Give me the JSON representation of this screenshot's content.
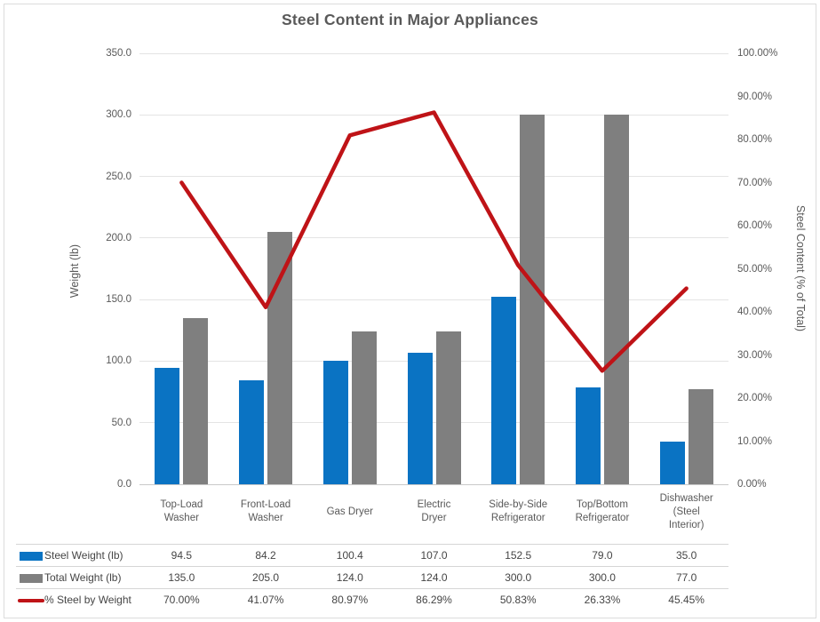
{
  "chart": {
    "title": "Steel Content in Major Appliances",
    "left_axis_title": "Weight (lb)",
    "right_axis_title": "Steel Content (% of Total)"
  },
  "chart_data": {
    "type": "combo-bar-line",
    "title": "Steel Content in Major Appliances",
    "categories": [
      "Top-Load Washer",
      "Front-Load Washer",
      "Gas Dryer",
      "Electric Dryer",
      "Side-by-Side Refrigerator",
      "Top/Bottom Refrigerator",
      "Dishwasher (Steel Interior)"
    ],
    "category_labels_wrapped": [
      "Top-Load\nWasher",
      "Front-Load\nWasher",
      "Gas Dryer",
      "Electric\nDryer",
      "Side-by-Side\nRefrigerator",
      "Top/Bottom\nRefrigerator",
      "Dishwasher\n(Steel\nInterior)"
    ],
    "series": [
      {
        "name": "Steel Weight (lb)",
        "type": "bar",
        "axis": "left",
        "color": "#0a73c3",
        "values": [
          94.5,
          84.2,
          100.4,
          107.0,
          152.5,
          79.0,
          35.0
        ],
        "display_values": [
          "94.5",
          "84.2",
          "100.4",
          "107.0",
          "152.5",
          "79.0",
          "35.0"
        ]
      },
      {
        "name": "Total Weight (lb)",
        "type": "bar",
        "axis": "left",
        "color": "#7f7f7f",
        "values": [
          135.0,
          205.0,
          124.0,
          124.0,
          300.0,
          300.0,
          77.0
        ],
        "display_values": [
          "135.0",
          "205.0",
          "124.0",
          "124.0",
          "300.0",
          "300.0",
          "77.0"
        ]
      },
      {
        "name": "% Steel by Weight",
        "type": "line",
        "axis": "right",
        "color": "#bf1317",
        "values": [
          70.0,
          41.07,
          80.97,
          86.29,
          50.83,
          26.33,
          45.45
        ],
        "display_values": [
          "70.00%",
          "41.07%",
          "80.97%",
          "86.29%",
          "50.83%",
          "26.33%",
          "45.45%"
        ]
      }
    ],
    "left_axis": {
      "title": "Weight (lb)",
      "min": 0,
      "max": 350,
      "step": 50,
      "tick_labels": [
        "0.0",
        "50.0",
        "100.0",
        "150.0",
        "200.0",
        "250.0",
        "300.0",
        "350.0"
      ]
    },
    "right_axis": {
      "title": "Steel Content (% of Total)",
      "min": 0,
      "max": 100,
      "step": 10,
      "tick_labels": [
        "0.00%",
        "10.00%",
        "20.00%",
        "30.00%",
        "40.00%",
        "50.00%",
        "60.00%",
        "70.00%",
        "80.00%",
        "90.00%",
        "100.00%"
      ]
    },
    "gridlines": "horizontal",
    "legend_position": "data-table-left",
    "has_data_table": true,
    "colors": {
      "steel_bar": "#0a73c3",
      "total_bar": "#7f7f7f",
      "percent_line": "#bf1317"
    }
  }
}
